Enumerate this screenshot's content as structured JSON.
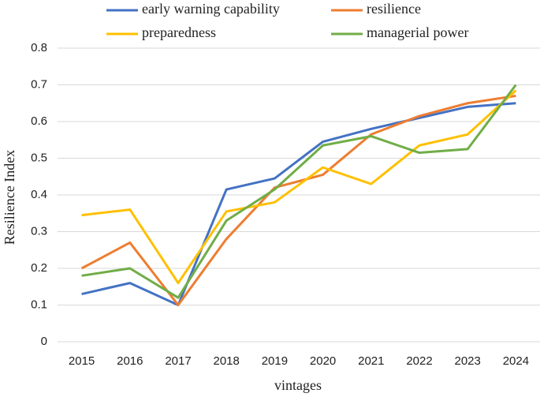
{
  "chart_data": {
    "type": "line",
    "x_label": "vintages",
    "y_label": "Resilience Index",
    "categories": [
      "2015",
      "2016",
      "2017",
      "2018",
      "2019",
      "2020",
      "2021",
      "2022",
      "2023",
      "2024"
    ],
    "series": [
      {
        "name": "early warning capability",
        "color": "#4472c4",
        "values": [
          0.13,
          0.16,
          0.1,
          0.415,
          0.445,
          0.545,
          0.58,
          0.61,
          0.64,
          0.65
        ]
      },
      {
        "name": "resilience",
        "color": "#ed7d31",
        "values": [
          0.2,
          0.27,
          0.1,
          0.28,
          0.42,
          0.455,
          0.565,
          0.615,
          0.65,
          0.67
        ]
      },
      {
        "name": "preparedness",
        "color": "#ffc000",
        "values": [
          0.345,
          0.36,
          0.16,
          0.355,
          0.38,
          0.475,
          0.43,
          0.535,
          0.565,
          0.685
        ]
      },
      {
        "name": "managerial power",
        "color": "#70ad47",
        "values": [
          0.18,
          0.2,
          0.12,
          0.33,
          0.415,
          0.535,
          0.56,
          0.515,
          0.525,
          0.7
        ]
      }
    ],
    "ylim": [
      0,
      0.8
    ],
    "yticks": [
      0,
      0.1,
      0.2,
      0.3,
      0.4,
      0.5,
      0.6,
      0.7,
      0.8
    ],
    "grid": true,
    "legend": "top"
  }
}
